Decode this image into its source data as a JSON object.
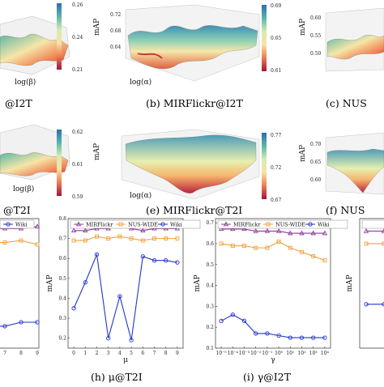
{
  "captions": {
    "a": "@I2T",
    "b": "(b) MIRFlickr@I2T",
    "c": "(c) NUS",
    "d": "@T2I",
    "e": "(e) MIRFlickr@T2I",
    "f": "(f) NUS",
    "h": "(h) μ@T2I",
    "i": "(i) γ@I2T"
  },
  "colors": {
    "mirflickr": "#8e3b9a",
    "nuswide": "#f0a23b",
    "wiki": "#2436c8"
  },
  "chart_data": [
    {
      "id": "a",
      "type": "heatmap",
      "subtype": "surface3d",
      "xlabel": "log(β)",
      "ylabel": "",
      "zlabel": "",
      "colorbar": {
        "ticks": [
          "0.26",
          "0.24",
          "0.21"
        ],
        "range": [
          0.21,
          0.26
        ]
      }
    },
    {
      "id": "b",
      "type": "heatmap",
      "subtype": "surface3d",
      "xlabel": "log(α)",
      "zlabel": "mAP",
      "zticks": [
        "0.72",
        "0.68",
        "0.64"
      ],
      "colorbar": {
        "ticks": [
          "0.69",
          "0.65",
          "0.61"
        ],
        "range": [
          0.61,
          0.69
        ]
      }
    },
    {
      "id": "c",
      "type": "heatmap",
      "subtype": "surface3d",
      "zlabel": "mAP",
      "zticks": [
        "0.60",
        "0.55",
        "0.50"
      ]
    },
    {
      "id": "d",
      "type": "heatmap",
      "subtype": "surface3d",
      "xlabel": "log(β)",
      "colorbar": {
        "ticks": [
          "0.62",
          "0.61",
          "0.59"
        ],
        "range": [
          0.59,
          0.62
        ]
      }
    },
    {
      "id": "e",
      "type": "heatmap",
      "subtype": "surface3d",
      "xlabel": "log(α)",
      "zlabel": "mAP",
      "colorbar": {
        "ticks": [
          "0.77",
          "0.72",
          "0.67"
        ],
        "range": [
          0.67,
          0.77
        ]
      }
    },
    {
      "id": "f",
      "type": "heatmap",
      "subtype": "surface3d",
      "zlabel": "mAP",
      "zticks": [
        "0.70",
        "0.65",
        "0.60"
      ]
    },
    {
      "id": "g",
      "type": "line",
      "x": [
        7,
        8,
        9
      ],
      "xticks": [
        "7",
        "8",
        "9"
      ],
      "legend": [
        "Wiki"
      ],
      "series": [
        {
          "name": "MIRFlickr",
          "values": [
            0.75,
            0.75,
            0.76
          ]
        },
        {
          "name": "NUS-WIDE",
          "values": [
            0.68,
            0.69,
            0.67
          ]
        },
        {
          "name": "Wiki",
          "values": [
            0.26,
            0.28,
            0.28
          ]
        }
      ]
    },
    {
      "id": "h",
      "type": "line",
      "xlabel": "μ",
      "ylabel": "mAP",
      "x": [
        0,
        1,
        2,
        3,
        4,
        5,
        6,
        7,
        8,
        9
      ],
      "xticks": [
        "0",
        "1",
        "2",
        "3",
        "4",
        "5",
        "6",
        "7",
        "8",
        "9"
      ],
      "yticks": [
        "0.2",
        "0.3",
        "0.4",
        "0.5",
        "0.6",
        "0.7",
        "0.8"
      ],
      "ylim": [
        0.15,
        0.8
      ],
      "legend": [
        "MIRFlickr",
        "NUS-WIDE",
        "Wiki"
      ],
      "series": [
        {
          "name": "MIRFlickr",
          "values": [
            0.74,
            0.74,
            0.75,
            0.75,
            0.76,
            0.75,
            0.74,
            0.75,
            0.75,
            0.75
          ]
        },
        {
          "name": "NUS-WIDE",
          "values": [
            0.69,
            0.69,
            0.71,
            0.7,
            0.71,
            0.7,
            0.69,
            0.7,
            0.7,
            0.7
          ]
        },
        {
          "name": "Wiki",
          "values": [
            0.35,
            0.48,
            0.62,
            0.2,
            0.41,
            0.19,
            0.61,
            0.59,
            0.59,
            0.58
          ]
        }
      ]
    },
    {
      "id": "i",
      "type": "line",
      "xlabel": "γ",
      "ylabel": "mAP",
      "x": [
        -5,
        -4,
        -3,
        -2,
        -1,
        0,
        1,
        2,
        3,
        4
      ],
      "xticks": [
        "10⁻⁵",
        "10⁻⁴",
        "10⁻³",
        "10⁻²",
        "10⁻¹",
        "10⁰",
        "10¹",
        "10²",
        "10³",
        "10⁴"
      ],
      "yticks": [
        "0.1",
        "0.2",
        "0.3",
        "0.4",
        "0.5",
        "0.6",
        "0.7"
      ],
      "ylim": [
        0.1,
        0.72
      ],
      "legend": [
        "MIRFlickr",
        "NUS-WIDE",
        "Wiki"
      ],
      "series": [
        {
          "name": "MIRFlickr",
          "values": [
            0.67,
            0.67,
            0.67,
            0.66,
            0.66,
            0.66,
            0.65,
            0.65,
            0.65,
            0.65
          ]
        },
        {
          "name": "NUS-WIDE",
          "values": [
            0.6,
            0.59,
            0.59,
            0.58,
            0.58,
            0.61,
            0.58,
            0.56,
            0.54,
            0.52
          ]
        },
        {
          "name": "Wiki",
          "values": [
            0.23,
            0.26,
            0.23,
            0.17,
            0.17,
            0.16,
            0.15,
            0.15,
            0.15,
            0.15
          ]
        }
      ]
    },
    {
      "id": "j",
      "type": "line",
      "ylabel": "mAP",
      "series": [
        {
          "name": "MIRFlickr",
          "values": [
            0.66,
            0.66
          ]
        },
        {
          "name": "NUS-WIDE",
          "values": [
            0.6,
            0.6
          ]
        },
        {
          "name": "Wiki",
          "values": [
            0.31,
            0.31
          ]
        }
      ]
    }
  ]
}
